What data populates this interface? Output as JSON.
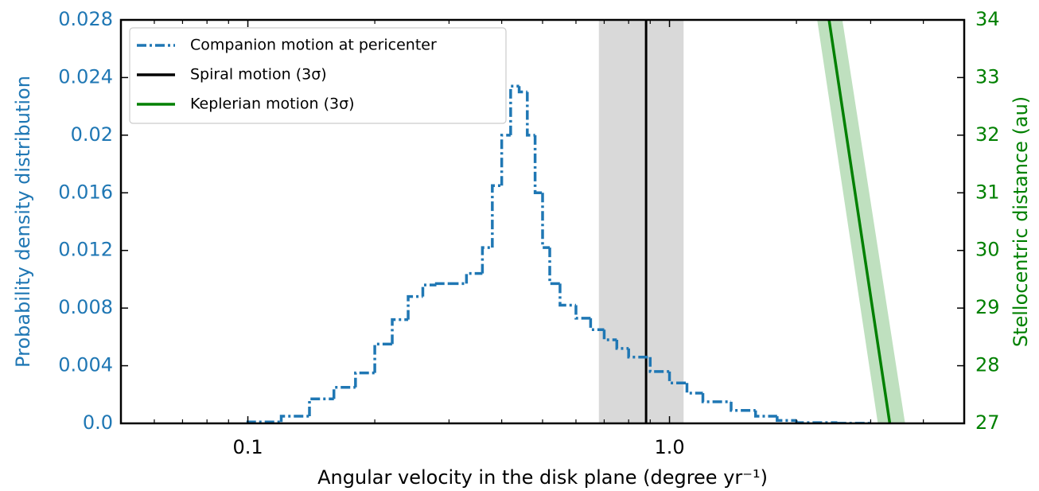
{
  "chart_data": {
    "type": "histogram",
    "xlabel": "Angular velocity in the disk plane (degree yr⁻¹)",
    "ylabel": "Probability density distribution",
    "y2label": "Stellocentric distance (au)",
    "ylabel_color": "#1f77b4",
    "y2label_color": "#008000",
    "xscale": "log",
    "xlim": [
      0.05,
      5
    ],
    "xticks": [
      0.1,
      {
        "value": 1,
        "label": "1.0"
      }
    ],
    "ylim": [
      0,
      0.028
    ],
    "yticks": [
      {
        "value": 0,
        "label": "0.0"
      },
      0.004,
      0.008,
      0.012,
      0.016,
      0.02,
      0.024,
      0.028
    ],
    "y2lim": [
      27,
      34
    ],
    "y2ticks": [
      27,
      28,
      29,
      30,
      31,
      32,
      33,
      34
    ],
    "legend": "upper left",
    "histogram": {
      "name": "Companion motion at pericenter",
      "color": "#1f77b4",
      "linestyle": "dashdot",
      "bins": [
        0.1,
        0.12,
        0.14,
        0.16,
        0.18,
        0.2,
        0.22,
        0.24,
        0.26,
        0.28,
        0.3,
        0.33,
        0.36,
        0.38,
        0.4,
        0.42,
        0.44,
        0.46,
        0.48,
        0.5,
        0.52,
        0.55,
        0.6,
        0.65,
        0.7,
        0.75,
        0.8,
        0.9,
        1.0,
        1.1,
        1.2,
        1.4,
        1.6,
        1.8,
        2.0,
        2.5,
        3.0
      ],
      "values": [
        0.0001,
        0.0005,
        0.0017,
        0.0025,
        0.0035,
        0.0055,
        0.0072,
        0.0088,
        0.0096,
        0.0097,
        0.0097,
        0.0104,
        0.0122,
        0.0165,
        0.02,
        0.0234,
        0.023,
        0.02,
        0.016,
        0.0122,
        0.0097,
        0.0082,
        0.0073,
        0.0065,
        0.0058,
        0.0052,
        0.0046,
        0.0036,
        0.0028,
        0.0021,
        0.0015,
        0.0009,
        0.0005,
        0.0002,
        5e-05,
        1e-05
      ]
    },
    "spiral": {
      "name": "Spiral motion (3σ)",
      "color": "#000000",
      "x": 0.88,
      "band": [
        0.68,
        1.08
      ],
      "band_color": "#d9d9d9"
    },
    "keplerian": {
      "name": "Keplerian motion (3σ)",
      "color": "#008000",
      "axis": "y2",
      "x": [
        2.39,
        3.33
      ],
      "values": [
        34,
        27
      ],
      "lower": [
        2.24,
        3.12
      ],
      "upper": [
        2.57,
        3.62
      ],
      "band_color": "#bfe0bf"
    }
  }
}
